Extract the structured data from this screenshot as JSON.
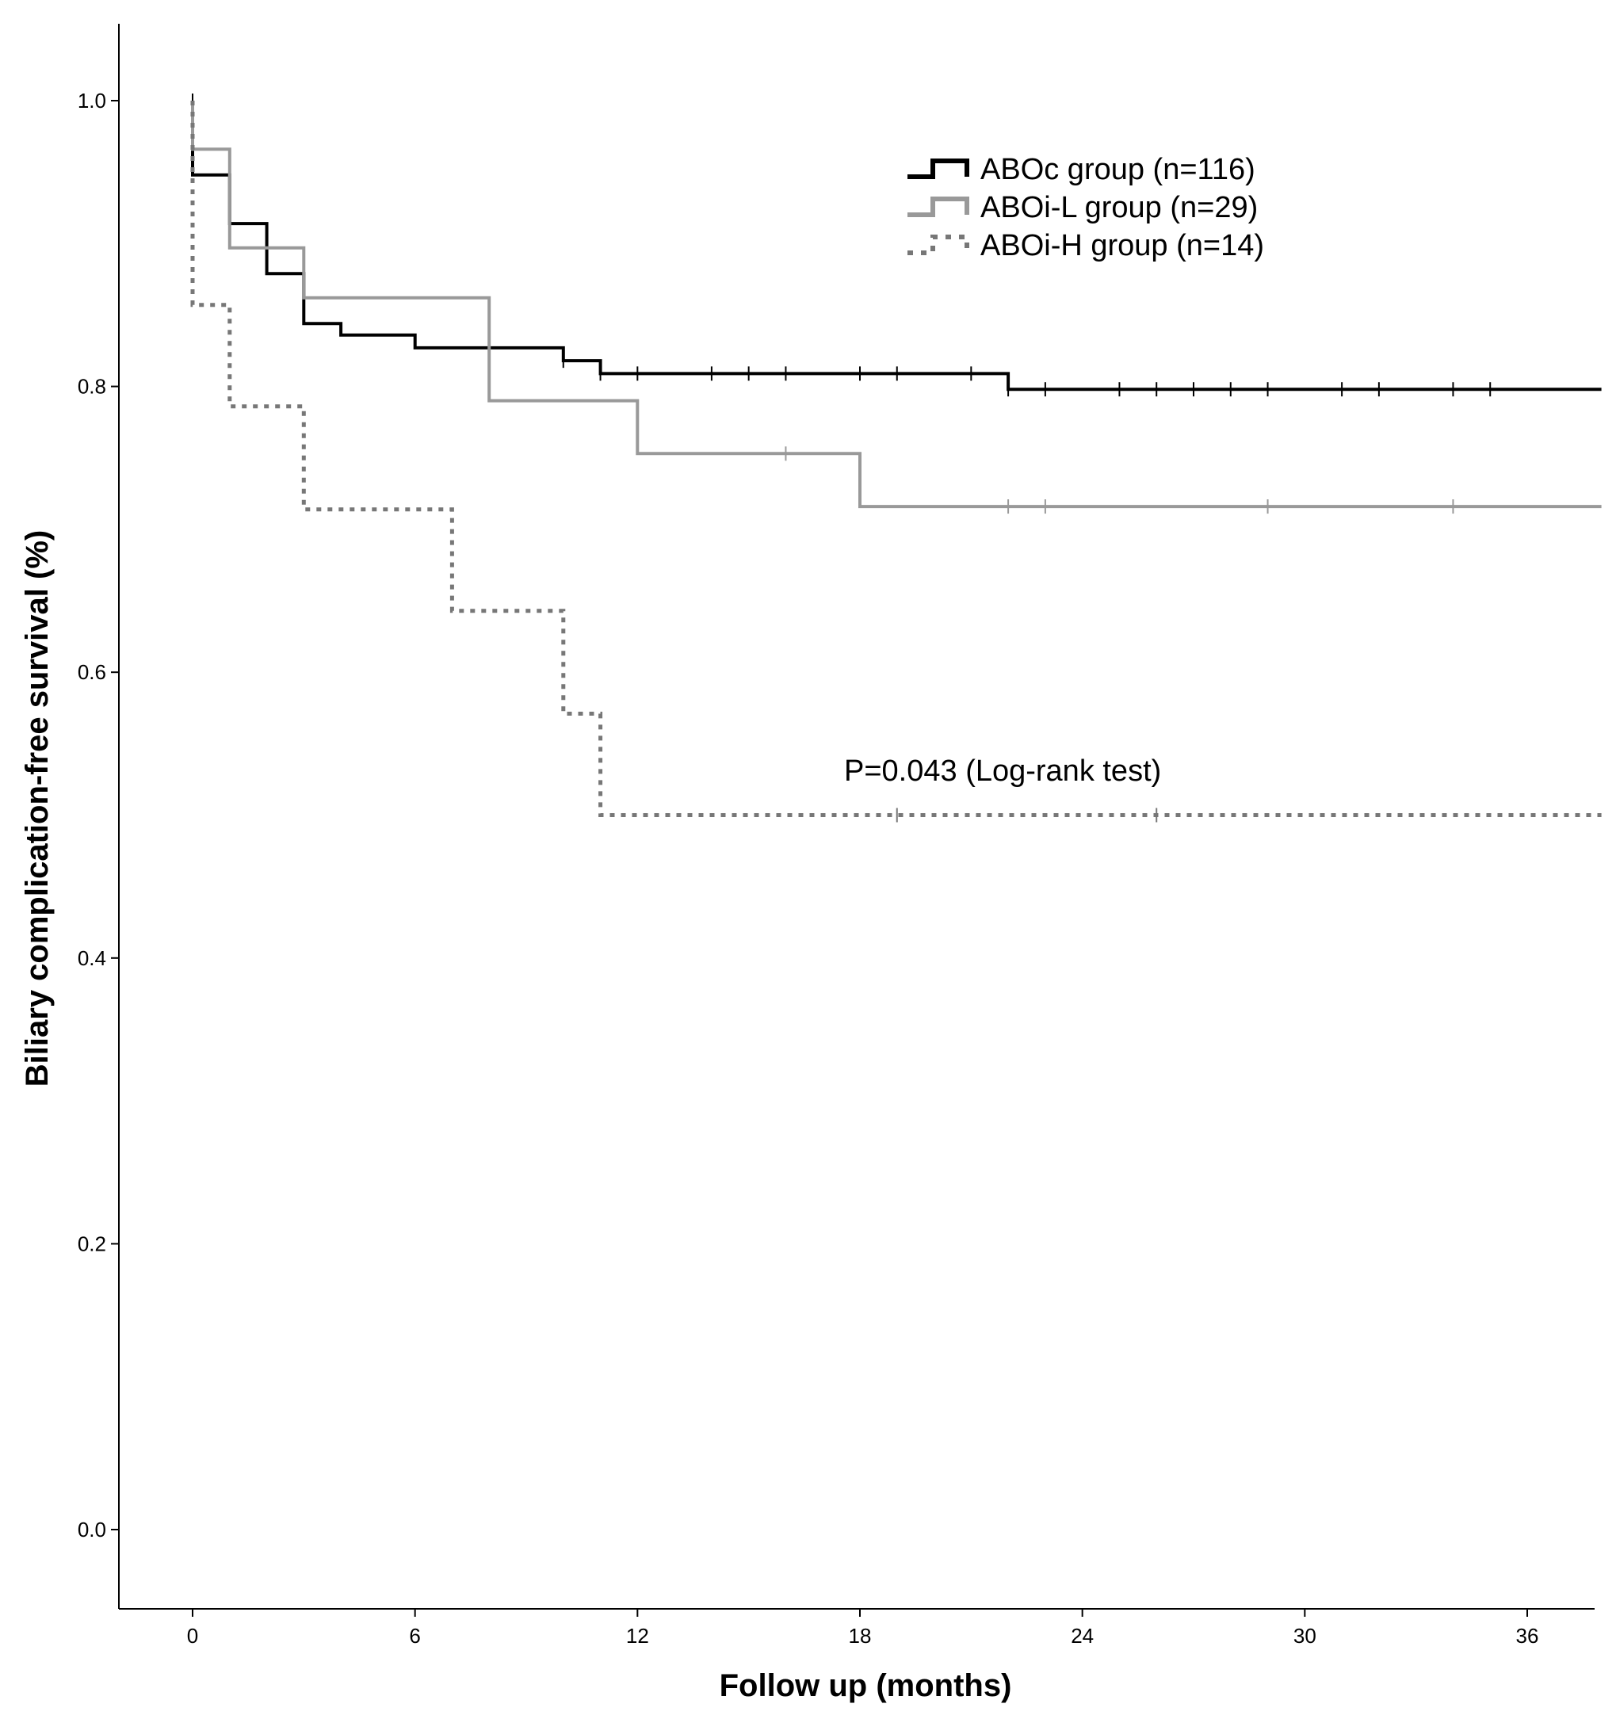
{
  "chart_data": {
    "type": "line",
    "subtype": "kaplan-meier",
    "title": "",
    "xlabel": "Follow up (months)",
    "ylabel": "Biliary complication-free survival (%)",
    "xlim": [
      -2,
      38
    ],
    "ylim": [
      -0.05,
      1.05
    ],
    "xticks": [
      0,
      6,
      12,
      18,
      24,
      30,
      36
    ],
    "yticks": [
      0.0,
      0.2,
      0.4,
      0.6,
      0.8,
      1.0
    ],
    "ytick_labels": [
      "0.0",
      "0.2",
      "0.4",
      "0.6",
      "0.8",
      "1.0"
    ],
    "legend_position": "top-right",
    "annotation": "P=0.043 (Log-rank test)",
    "series": [
      {
        "name": "ABOc group (n=116)",
        "color": "#000000",
        "style": "solid",
        "steps": [
          [
            0,
            1.0
          ],
          [
            0,
            0.948
          ],
          [
            1,
            0.948
          ],
          [
            1,
            0.914
          ],
          [
            2,
            0.914
          ],
          [
            2,
            0.879
          ],
          [
            3,
            0.879
          ],
          [
            3,
            0.844
          ],
          [
            4,
            0.844
          ],
          [
            4,
            0.836
          ],
          [
            6,
            0.836
          ],
          [
            6,
            0.827
          ],
          [
            10,
            0.827
          ],
          [
            10,
            0.818
          ],
          [
            11,
            0.818
          ],
          [
            11,
            0.809
          ],
          [
            22,
            0.809
          ],
          [
            22,
            0.798
          ],
          [
            38,
            0.798
          ]
        ],
        "censored": [
          [
            0,
            1.0
          ],
          [
            1,
            0.914
          ],
          [
            10,
            0.818
          ],
          [
            11,
            0.809
          ],
          [
            12,
            0.809
          ],
          [
            14,
            0.809
          ],
          [
            15,
            0.809
          ],
          [
            16,
            0.809
          ],
          [
            18,
            0.809
          ],
          [
            19,
            0.809
          ],
          [
            21,
            0.809
          ],
          [
            22,
            0.798
          ],
          [
            23,
            0.798
          ],
          [
            25,
            0.798
          ],
          [
            26,
            0.798
          ],
          [
            27,
            0.798
          ],
          [
            28,
            0.798
          ],
          [
            29,
            0.798
          ],
          [
            31,
            0.798
          ],
          [
            32,
            0.798
          ],
          [
            34,
            0.798
          ],
          [
            35,
            0.798
          ]
        ]
      },
      {
        "name": "ABOi-L group (n=29)",
        "color": "#999999",
        "style": "solid",
        "steps": [
          [
            0,
            1.0
          ],
          [
            0,
            0.966
          ],
          [
            1,
            0.966
          ],
          [
            1,
            0.897
          ],
          [
            3,
            0.897
          ],
          [
            3,
            0.862
          ],
          [
            8,
            0.862
          ],
          [
            8,
            0.79
          ],
          [
            12,
            0.79
          ],
          [
            12,
            0.753
          ],
          [
            18,
            0.753
          ],
          [
            18,
            0.716
          ],
          [
            38,
            0.716
          ]
        ],
        "censored": [
          [
            16,
            0.753
          ],
          [
            22,
            0.716
          ],
          [
            23,
            0.716
          ],
          [
            29,
            0.716
          ],
          [
            34,
            0.716
          ]
        ]
      },
      {
        "name": "ABOi-H group (n=14)",
        "color": "#777777",
        "style": "dotted",
        "steps": [
          [
            0,
            1.0
          ],
          [
            0,
            0.857
          ],
          [
            1,
            0.857
          ],
          [
            1,
            0.786
          ],
          [
            3,
            0.786
          ],
          [
            3,
            0.714
          ],
          [
            7,
            0.714
          ],
          [
            7,
            0.643
          ],
          [
            10,
            0.643
          ],
          [
            10,
            0.571
          ],
          [
            11,
            0.571
          ],
          [
            11,
            0.5
          ],
          [
            38,
            0.5
          ]
        ],
        "censored": [
          [
            19,
            0.5
          ],
          [
            26,
            0.5
          ]
        ]
      }
    ]
  }
}
